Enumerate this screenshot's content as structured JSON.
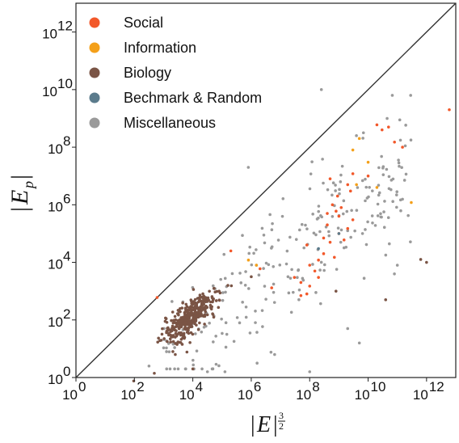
{
  "chart_data": {
    "type": "scatter",
    "xlabel": {
      "bar_left": "|",
      "var": "E",
      "bar_right": "|",
      "exp_num": "3",
      "exp_den": "2"
    },
    "ylabel": {
      "bar_left": "|",
      "var": "E",
      "sub": "p",
      "bar_right": "|"
    },
    "x_scale": "log",
    "y_scale": "log",
    "xlim": [
      1,
      10000000000000.0
    ],
    "ylim": [
      1,
      10000000000000.0
    ],
    "x_ticks": [
      {
        "value": 1,
        "base": "10",
        "exp": "0"
      },
      {
        "value": 100,
        "base": "10",
        "exp": "2"
      },
      {
        "value": 10000,
        "base": "10",
        "exp": "4"
      },
      {
        "value": 1000000,
        "base": "10",
        "exp": "6"
      },
      {
        "value": 100000000,
        "base": "10",
        "exp": "8"
      },
      {
        "value": 10000000000,
        "base": "10",
        "exp": "10"
      },
      {
        "value": 1000000000000,
        "base": "10",
        "exp": "12"
      }
    ],
    "y_ticks": [
      {
        "value": 1,
        "base": "10",
        "exp": "0"
      },
      {
        "value": 100,
        "base": "10",
        "exp": "2"
      },
      {
        "value": 10000,
        "base": "10",
        "exp": "4"
      },
      {
        "value": 1000000,
        "base": "10",
        "exp": "6"
      },
      {
        "value": 100000000,
        "base": "10",
        "exp": "8"
      },
      {
        "value": 10000000000,
        "base": "10",
        "exp": "10"
      },
      {
        "value": 1000000000000,
        "base": "10",
        "exp": "12"
      }
    ],
    "grid": false,
    "legend_position": "top-left",
    "diagonal_line": {
      "from": [
        1,
        1
      ],
      "to": [
        10000000000000.0,
        10000000000000.0
      ],
      "color": "#333333"
    },
    "series": [
      {
        "name": "Social",
        "color": "#f2582a",
        "x": [
          600,
          5000000,
          200000,
          2000000,
          30000000.0,
          50000000.0,
          80000000.0,
          100000000.0,
          150000000.0,
          200000000.0,
          300000000.0,
          500000000.0,
          700000000.0,
          1000000000.0,
          1500000000.0,
          2000000000.0,
          3000000000.0,
          400000000.0,
          600000000.0,
          900000000.0,
          1200000000.0,
          2500000000.0,
          100000000.0,
          200000000.0,
          50000000.0,
          80000000.0,
          300000000.0,
          1000000000.0,
          500000000.0,
          2000000000.0,
          3000000000.0,
          10000000000.0,
          20000000000.0,
          30000000000.0,
          50000000000.0,
          80000000000.0,
          150000000000.0,
          6000000000000.0,
          400000000.0,
          800000000.0
        ],
        "y": [
          600,
          1300,
          25000,
          6000,
          3000,
          700,
          800,
          1500,
          5000,
          3000,
          20000,
          50000,
          15000,
          100000,
          60000,
          150000,
          300000,
          500000,
          1000000,
          2000000,
          800000,
          3000000,
          8000,
          12000,
          2000,
          40000,
          70000,
          400000,
          8000000,
          5000000,
          12000000,
          10000000.0,
          600000000.0,
          400000000.0,
          500000000.0,
          150000000.0,
          100000000.0,
          2000000000.0,
          200000.0,
          600000.0
        ]
      },
      {
        "name": "Information",
        "color": "#f4a01a",
        "x": [
          1500000,
          800000,
          3000000000.0,
          5000000000.0,
          10000000000.0,
          4000000000.0,
          20000000000.0,
          300000000000.0
        ],
        "y": [
          8000,
          12000,
          80000000.0,
          200000000.0,
          30000000.0,
          5000000.0,
          4000000.0,
          1200000.0
        ]
      },
      {
        "name": "Biology",
        "color": "#7a5445",
        "points": "cluster",
        "x": [],
        "y": []
      },
      {
        "name": "Bechmark & Random",
        "color": "#5b7b8c",
        "x": [
          200000000,
          1000000000.0
        ],
        "y": [
          30000,
          100000
        ]
      },
      {
        "name": "Miscellaneous",
        "color": "#9a9a9a",
        "points": "scatter",
        "x": [],
        "y": []
      }
    ]
  },
  "legend": {
    "items": [
      {
        "label": "Social",
        "color": "#f2582a"
      },
      {
        "label": "Information",
        "color": "#f4a01a"
      },
      {
        "label": "Biology",
        "color": "#7a5445"
      },
      {
        "label": "Bechmark & Random",
        "color": "#5b7b8c"
      },
      {
        "label": "Miscellaneous",
        "color": "#9a9a9a"
      }
    ]
  }
}
